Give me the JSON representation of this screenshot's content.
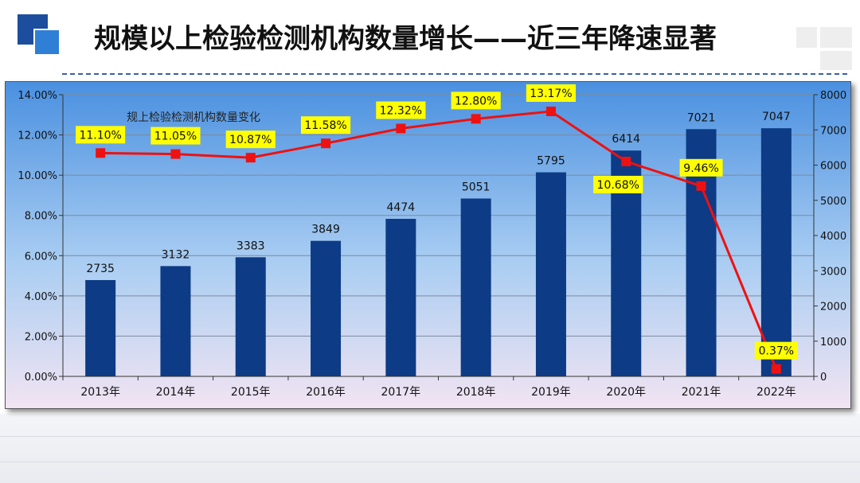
{
  "title": "规模以上检验检测机构数量增长——近三年降速显著",
  "chart_data": {
    "type": "bar",
    "subtitle": "规上检验检测机构数量变化",
    "categories": [
      "2013年",
      "2014年",
      "2015年",
      "2016年",
      "2017年",
      "2018年",
      "2019年",
      "2020年",
      "2021年",
      "2022年"
    ],
    "series": [
      {
        "type": "bar",
        "axis": "right",
        "values": [
          2735,
          3132,
          3383,
          3849,
          4474,
          5051,
          5795,
          6414,
          7021,
          7047
        ],
        "labels": [
          "2735",
          "3132",
          "3383",
          "3849",
          "4474",
          "5051",
          "5795",
          "6414",
          "7021",
          "7047"
        ],
        "color": "#0d3b85"
      },
      {
        "type": "line",
        "axis": "left",
        "values": [
          11.1,
          11.05,
          10.87,
          11.58,
          12.32,
          12.8,
          13.17,
          10.68,
          9.46,
          0.37
        ],
        "labels": [
          "11.10%",
          "11.05%",
          "10.87%",
          "11.58%",
          "12.32%",
          "12.80%",
          "13.17%",
          "10.68%",
          "9.46%",
          "0.37%"
        ],
        "color": "#ee1111"
      }
    ],
    "y_left": {
      "min": 0,
      "max": 14,
      "step": 2,
      "tick_labels": [
        "0.00%",
        "2.00%",
        "4.00%",
        "6.00%",
        "8.00%",
        "10.00%",
        "12.00%",
        "14.00%"
      ]
    },
    "y_right": {
      "min": 0,
      "max": 8000,
      "step": 1000,
      "tick_labels": [
        "0",
        "1000",
        "2000",
        "3000",
        "4000",
        "5000",
        "6000",
        "7000",
        "8000"
      ]
    },
    "grid": true,
    "legend": "none",
    "colors": {
      "bg_top": "#4a90e0",
      "bg_bottom": "#f2e4f2",
      "label_bg": "#ffff00"
    }
  }
}
